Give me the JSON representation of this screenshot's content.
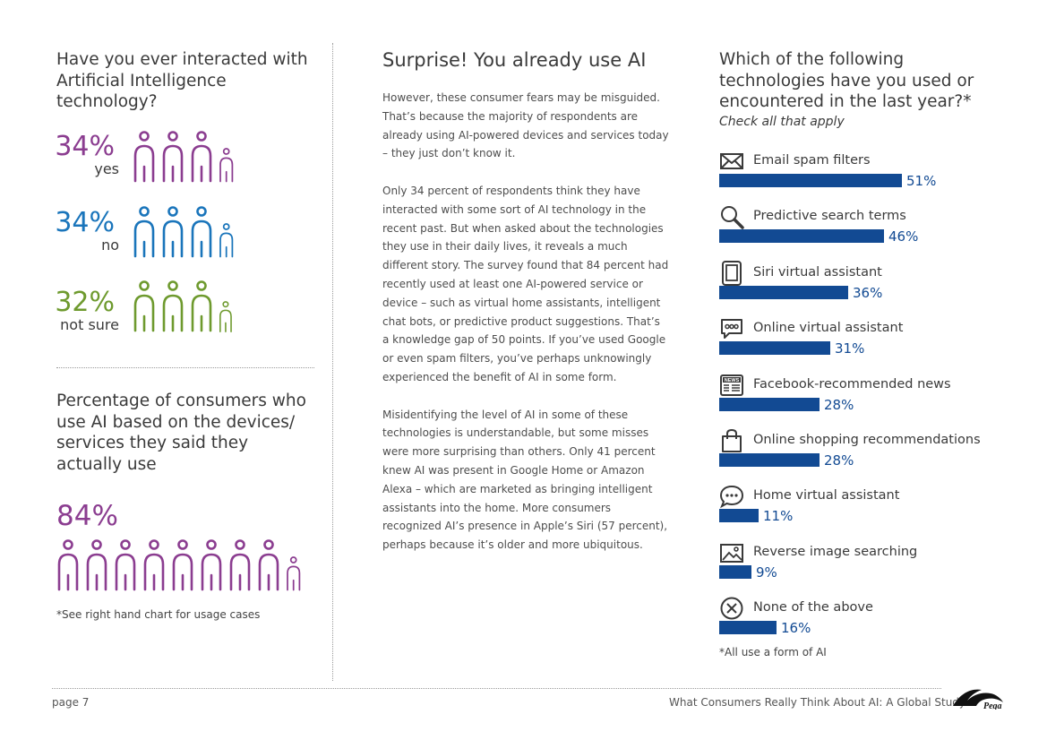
{
  "left": {
    "question": "Have you ever interacted with Artificial Intelligence technology?",
    "stats": [
      {
        "percent": "34%",
        "label": "yes",
        "color": "#8b3d90"
      },
      {
        "percent": "34%",
        "label": "no",
        "color": "#1a75bb"
      },
      {
        "percent": "32%",
        "label": "not sure",
        "color": "#6e9a2e"
      }
    ],
    "usage_title": "Percentage of consumers who use AI based on the devices/ services they said they actually use",
    "usage_percent": "84%",
    "usage_color": "#8b3d90",
    "footnote": "*See right hand chart for usage cases"
  },
  "middle": {
    "title": "Surprise! You already use AI",
    "paragraphs": [
      "However, these consumer fears may be misguided. That’s because the majority of respondents are already using AI-powered devices and services today – they just don’t know it.",
      "Only 34 percent of respondents think they have interacted with some sort of AI technology in the recent past. But when asked about the technologies they use in their daily lives, it reveals a much different story. The survey found that 84 percent had recently used at least one AI-powered service or device – such as virtual home assistants, intelligent chat bots, or predictive product suggestions. That’s a knowledge gap of 50 points. If you’ve used Google or even spam filters, you’ve perhaps unknowingly experienced the benefit of AI in some form.",
      "Misidentifying the level of AI in some of these technologies is understandable, but some misses were more surprising than others. Only 41 percent knew AI was present in Google Home or Amazon Alexa – which are marketed as bringing intelligent assistants into the home. More consumers recognized AI’s presence in Apple’s Siri (57 percent), perhaps because it’s older and more ubiquitous."
    ]
  },
  "right": {
    "title": "Which of the following technologies have you used or encountered in the last year?*",
    "subtitle": "Check all that apply",
    "footnote": "*All use a form of AI",
    "bar_color": "#124a93"
  },
  "chart_data": {
    "type": "bar",
    "orientation": "horizontal",
    "categories": [
      "Email spam filters",
      "Predictive search terms",
      "Siri virtual assistant",
      "Online virtual assistant",
      "Facebook-recommended news",
      "Online shopping recommendations",
      "Home virtual assistant",
      "Reverse image searching",
      "None of the above"
    ],
    "values": [
      51,
      46,
      36,
      31,
      28,
      28,
      11,
      9,
      16
    ],
    "value_labels": [
      "51%",
      "46%",
      "36%",
      "31%",
      "28%",
      "28%",
      "11%",
      "9%",
      "16%"
    ],
    "icons": [
      "envelope-icon",
      "magnifier-icon",
      "tablet-icon",
      "chat-bubble-icon",
      "news-icon",
      "shopping-bag-icon",
      "speech-bubble-icon",
      "image-icon",
      "x-circle-icon"
    ],
    "xlim": [
      0,
      100
    ]
  },
  "footer": {
    "page": "page 7",
    "study": "What Consumers Really Think About AI: A Global Study",
    "logo_text": "Pega"
  }
}
